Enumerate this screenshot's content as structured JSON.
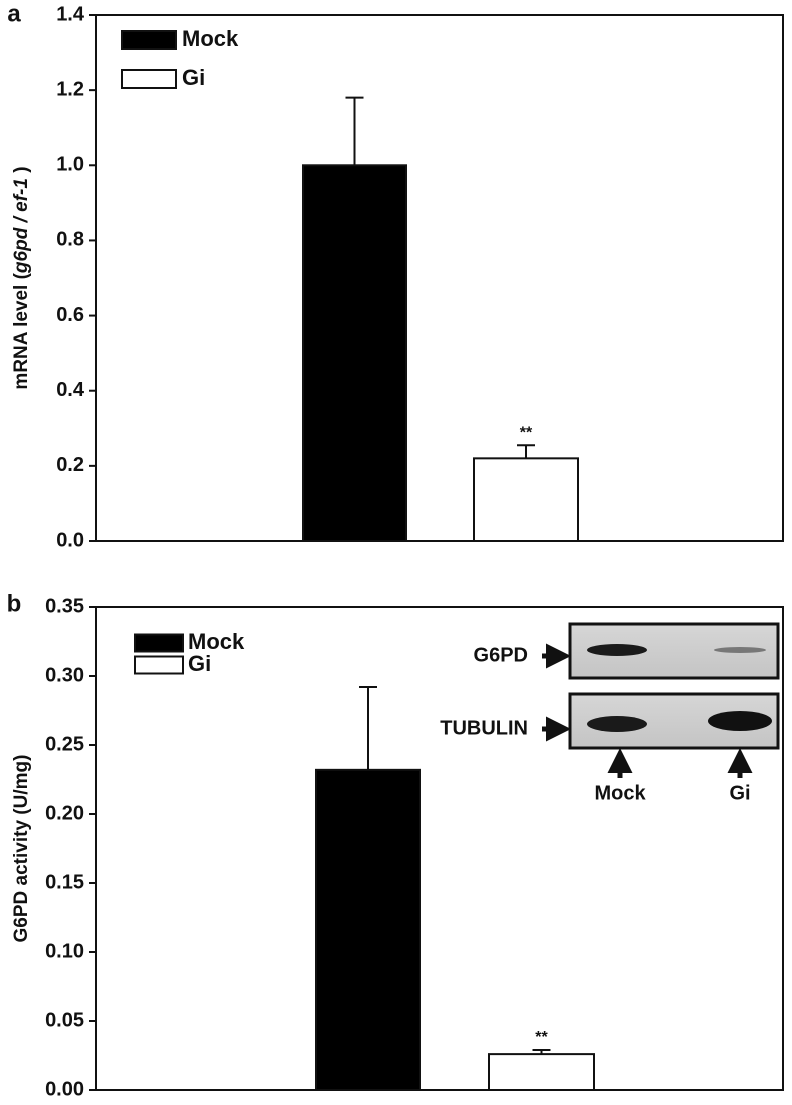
{
  "chart_data": [
    {
      "type": "bar",
      "panel_label": "a",
      "y_label_parts": [
        "mRNA level (",
        "g6pd / ef-1",
        " )"
      ],
      "ylim": [
        0,
        1.4
      ],
      "yticks": [
        {
          "value": 0,
          "label": "0.0"
        },
        0.2,
        0.4,
        0.6,
        0.8,
        {
          "value": 1,
          "label": "1.0"
        },
        1.2,
        1.4
      ],
      "series": [
        {
          "name": "Mock",
          "color": "#000000",
          "values": [
            1.0
          ],
          "errors": [
            0.18
          ]
        },
        {
          "name": "Gi",
          "color": "#ffffff",
          "values": [
            0.22
          ],
          "errors": [
            0.035
          ],
          "annotation": "**"
        }
      ]
    },
    {
      "type": "bar",
      "panel_label": "b",
      "y_label_parts": [
        "G6PD activity (U/mg)"
      ],
      "ylim": [
        0,
        0.35
      ],
      "yticks": [
        {
          "value": 0,
          "label": "0.00"
        },
        0.05,
        {
          "value": 0.1,
          "label": "0.10"
        },
        0.15,
        {
          "value": 0.2,
          "label": "0.20"
        },
        0.25,
        {
          "value": 0.3,
          "label": "0.30"
        },
        0.35
      ],
      "series": [
        {
          "name": "Mock",
          "color": "#000000",
          "values": [
            0.232
          ],
          "errors": [
            0.06
          ]
        },
        {
          "name": "Gi",
          "color": "#ffffff",
          "values": [
            0.026
          ],
          "errors": [
            0.003
          ],
          "annotation": "**"
        }
      ],
      "inset": {
        "rows": [
          "G6PD",
          "TUBULIN"
        ],
        "lanes": [
          "Mock",
          "Gi"
        ]
      }
    }
  ]
}
